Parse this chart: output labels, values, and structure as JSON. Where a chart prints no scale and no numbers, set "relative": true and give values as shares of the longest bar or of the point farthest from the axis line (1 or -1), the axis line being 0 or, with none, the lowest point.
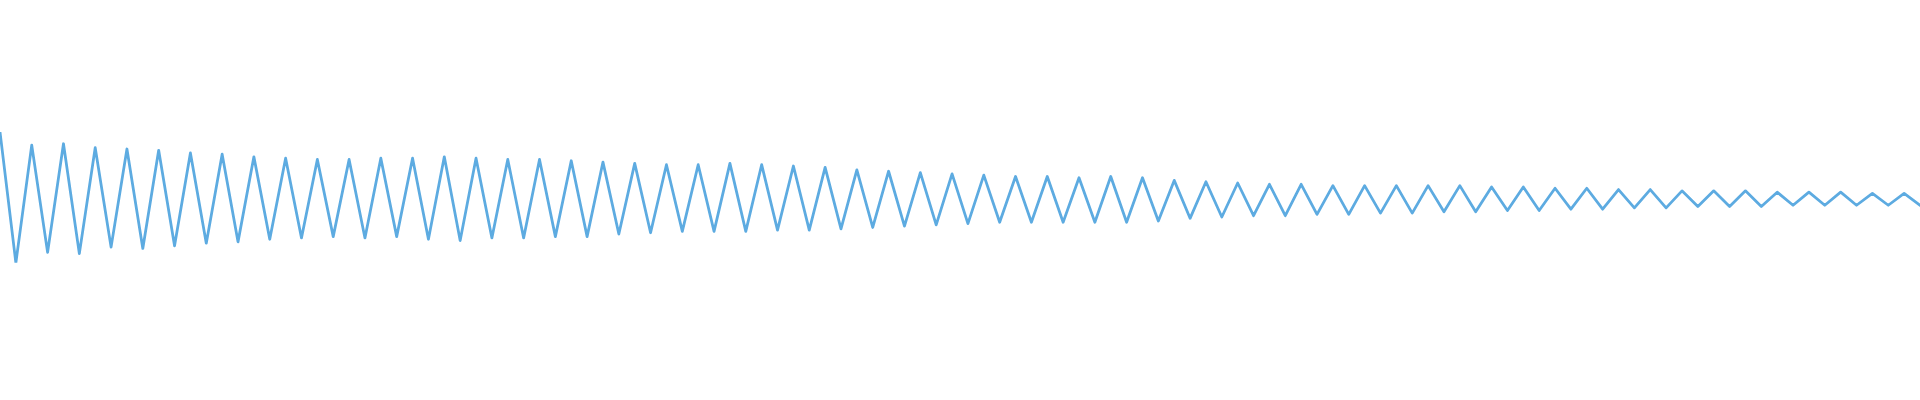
{
  "chart_data": {
    "type": "line",
    "relative": true,
    "categories": [
      null,
      null,
      null,
      null,
      null,
      null,
      null,
      null,
      null,
      null,
      null,
      null,
      null,
      null,
      null,
      null,
      null,
      null,
      null,
      null,
      null,
      null,
      null,
      null,
      null,
      null,
      null,
      null,
      null,
      null,
      null,
      null,
      null,
      null,
      null,
      null,
      null,
      null,
      null,
      null,
      null,
      null,
      null,
      null,
      null,
      null,
      null,
      null,
      null,
      null,
      null,
      null,
      null,
      null,
      null,
      null,
      null,
      null,
      null,
      null,
      null,
      null,
      null,
      null,
      null,
      null,
      null,
      null,
      null,
      null,
      null,
      null,
      null,
      null,
      null,
      null,
      null,
      null,
      null,
      null,
      null,
      null,
      null,
      null,
      null,
      null,
      null,
      null,
      null,
      null,
      null,
      null,
      null,
      null,
      null,
      null,
      null,
      null,
      null,
      null,
      null,
      null,
      null,
      null,
      null,
      null,
      null,
      null,
      null,
      null,
      null,
      null,
      null,
      null,
      null,
      null,
      null,
      null,
      null,
      null,
      null,
      null
    ],
    "series": [
      {
        "color": "#5dabe1",
        "values": [
          1.0,
          0.0,
          0.9,
          0.08,
          0.91,
          0.07,
          0.88,
          0.12,
          0.87,
          0.11,
          0.86,
          0.13,
          0.84,
          0.15,
          0.83,
          0.16,
          0.81,
          0.18,
          0.8,
          0.19,
          0.79,
          0.2,
          0.79,
          0.19,
          0.8,
          0.2,
          0.8,
          0.18,
          0.81,
          0.17,
          0.8,
          0.19,
          0.79,
          0.19,
          0.79,
          0.2,
          0.78,
          0.2,
          0.77,
          0.22,
          0.76,
          0.23,
          0.75,
          0.24,
          0.75,
          0.24,
          0.76,
          0.24,
          0.75,
          0.25,
          0.74,
          0.25,
          0.73,
          0.26,
          0.71,
          0.27,
          0.7,
          0.28,
          0.69,
          0.29,
          0.68,
          0.3,
          0.67,
          0.31,
          0.66,
          0.31,
          0.66,
          0.31,
          0.65,
          0.31,
          0.66,
          0.31,
          0.65,
          0.32,
          0.63,
          0.34,
          0.62,
          0.35,
          0.61,
          0.36,
          0.6,
          0.36,
          0.6,
          0.37,
          0.59,
          0.37,
          0.59,
          0.38,
          0.59,
          0.38,
          0.59,
          0.39,
          0.59,
          0.39,
          0.58,
          0.4,
          0.58,
          0.4,
          0.57,
          0.41,
          0.57,
          0.41,
          0.56,
          0.42,
          0.56,
          0.42,
          0.55,
          0.43,
          0.55,
          0.43,
          0.55,
          0.43,
          0.54,
          0.44,
          0.54,
          0.44,
          0.54,
          0.44,
          0.53,
          0.44,
          0.53,
          0.44
        ]
      }
    ],
    "legend": false
  }
}
